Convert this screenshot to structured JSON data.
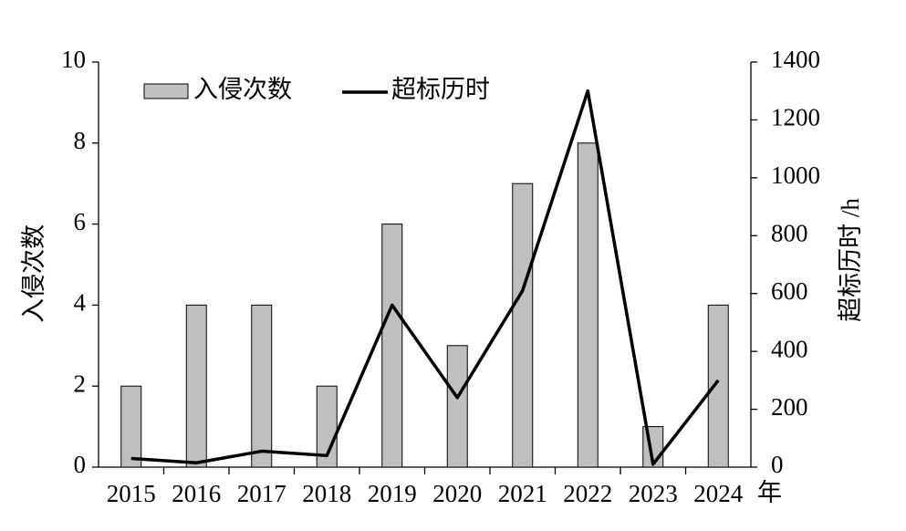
{
  "chart_data": {
    "type": "bar_line",
    "ylabel": "入侵次数",
    "y2label": "超标历时 /h",
    "xlabel": "年",
    "categories": [
      "2015",
      "2016",
      "2017",
      "2018",
      "2019",
      "2020",
      "2021",
      "2022",
      "2023",
      "2024"
    ],
    "series": [
      {
        "name": "入侵次数",
        "type": "bar",
        "color": "#bfbfbf",
        "values": [
          2,
          4,
          4,
          2,
          6,
          3,
          7,
          8,
          1,
          4
        ]
      },
      {
        "name": "超标历时",
        "type": "line",
        "axis": "y2",
        "color": "#000000",
        "values": [
          30,
          15,
          55,
          40,
          560,
          240,
          610,
          1300,
          10,
          300
        ]
      }
    ],
    "ylim": [
      0,
      10
    ],
    "yticks": [
      0,
      2,
      4,
      6,
      8,
      10
    ],
    "y2lim": [
      0,
      1400
    ],
    "y2ticks": [
      0,
      200,
      400,
      600,
      800,
      1000,
      1200,
      1400
    ],
    "legend": "upper left"
  }
}
